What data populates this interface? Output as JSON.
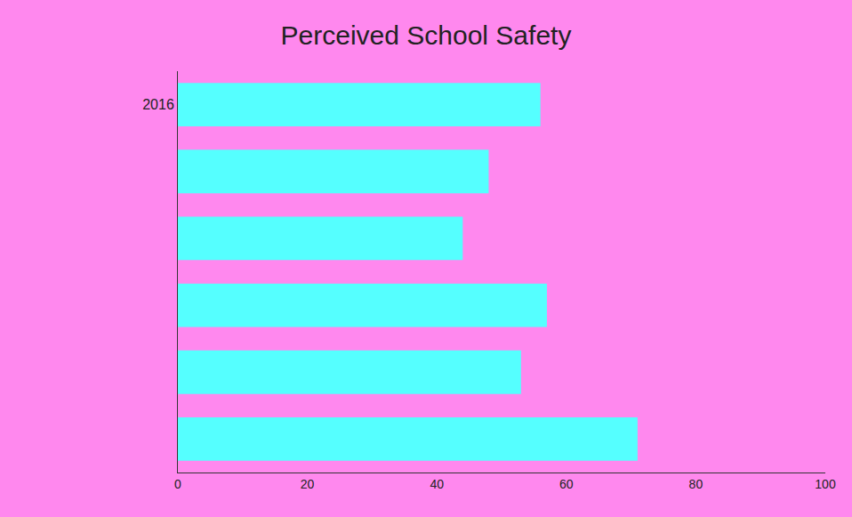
{
  "chart_data": {
    "type": "bar",
    "title": "Perceived School Safety",
    "orientation": "horizontal",
    "categories": [
      "2016",
      null,
      null,
      null,
      null,
      null
    ],
    "values": [
      56,
      48,
      44,
      57,
      53,
      71
    ],
    "color": "#55ffff",
    "xlim": [
      0,
      100
    ],
    "xticks": [
      0,
      20,
      40,
      60,
      80,
      100
    ],
    "grid": false,
    "tick_labels": true
  }
}
